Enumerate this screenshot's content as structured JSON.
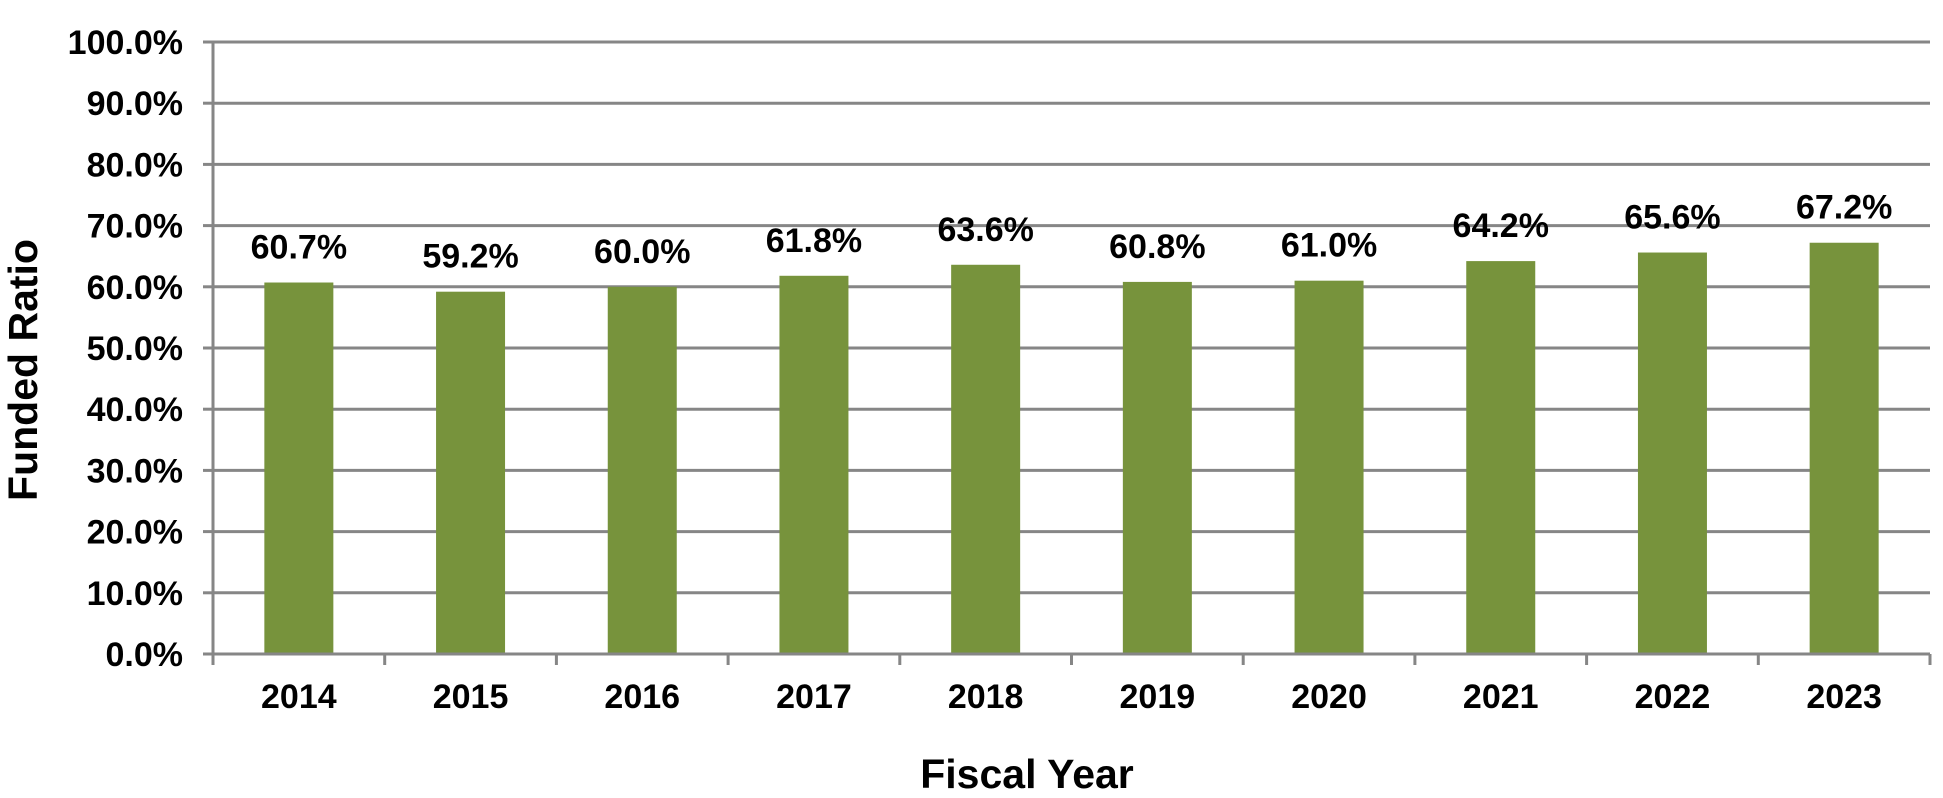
{
  "chart_data": {
    "type": "bar",
    "title": "",
    "xlabel": "Fiscal Year",
    "ylabel": "Funded Ratio",
    "categories": [
      "2014",
      "2015",
      "2016",
      "2017",
      "2018",
      "2019",
      "2020",
      "2021",
      "2022",
      "2023"
    ],
    "values": [
      60.7,
      59.2,
      60.0,
      61.8,
      63.6,
      60.8,
      61.0,
      64.2,
      65.6,
      67.2
    ],
    "data_labels": [
      "60.7%",
      "59.2%",
      "60.0%",
      "61.8%",
      "63.6%",
      "60.8%",
      "61.0%",
      "64.2%",
      "65.6%",
      "67.2%"
    ],
    "ylim": [
      0,
      100
    ],
    "yticks": [
      0,
      10,
      20,
      30,
      40,
      50,
      60,
      70,
      80,
      90,
      100
    ],
    "ytick_labels": [
      "0.0%",
      "10.0%",
      "20.0%",
      "30.0%",
      "40.0%",
      "50.0%",
      "60.0%",
      "70.0%",
      "80.0%",
      "90.0%",
      "100.0%"
    ],
    "grid": true,
    "legend": "none",
    "colors": {
      "bar": "#77933c",
      "grid": "#868686",
      "text": "#000000"
    }
  }
}
